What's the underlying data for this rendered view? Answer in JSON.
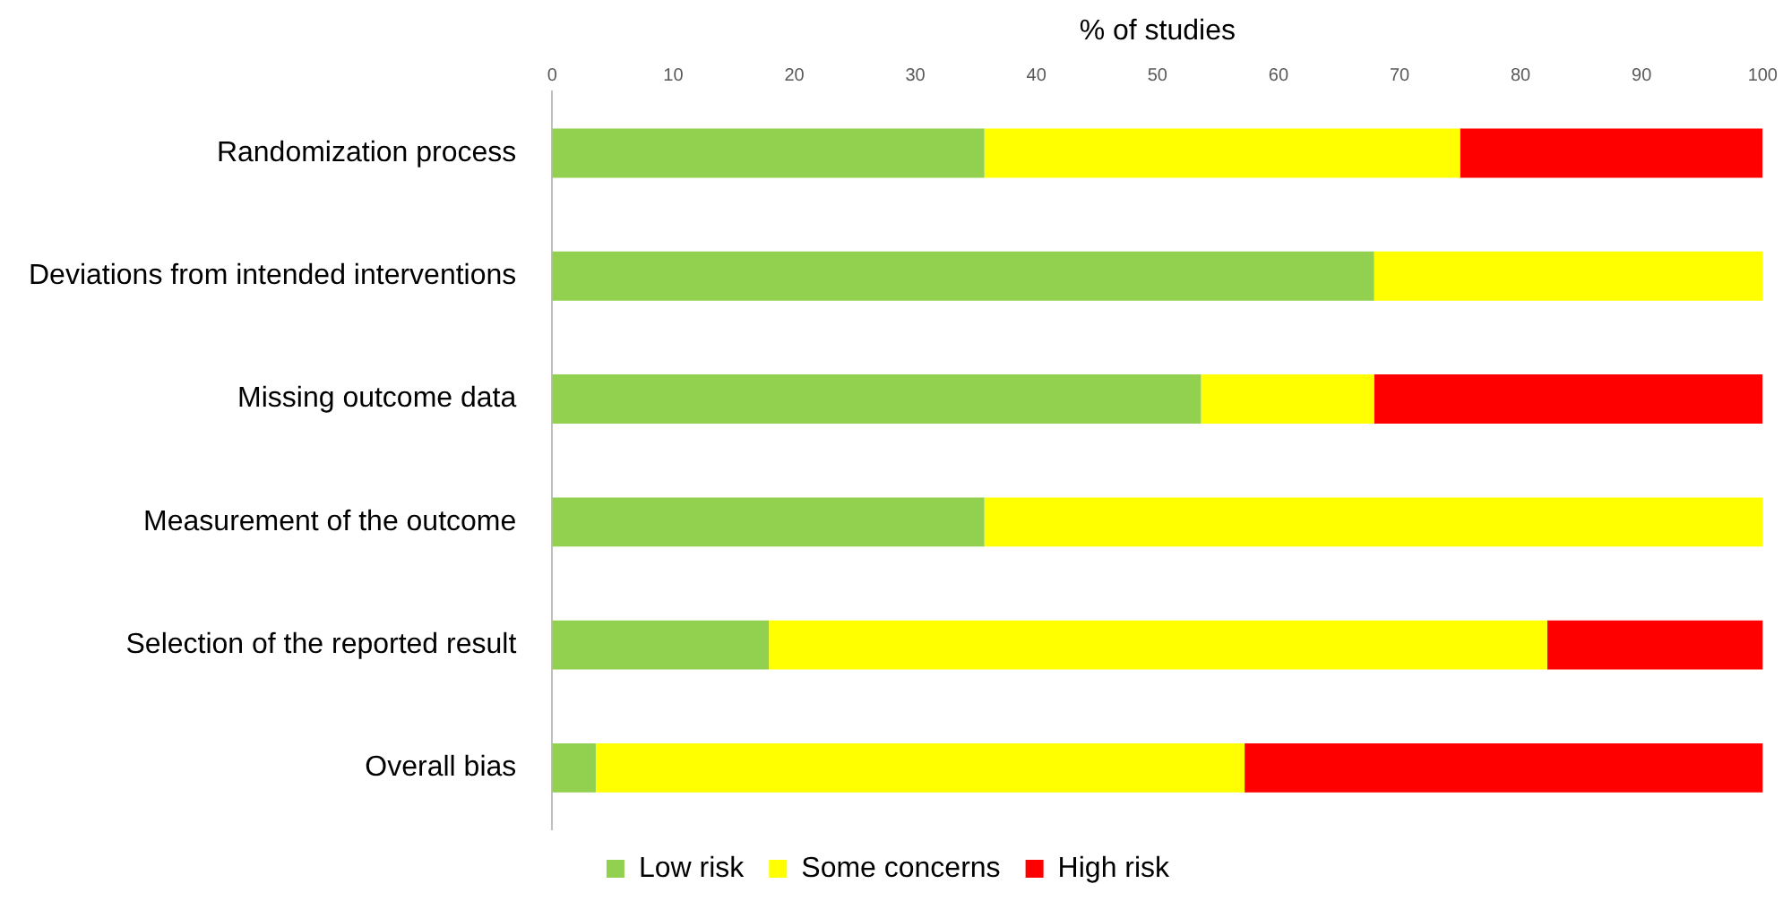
{
  "chart_data": {
    "type": "bar",
    "orientation": "horizontal",
    "stacked": true,
    "xlabel": "% of studies",
    "categories": [
      "Randomization process",
      "Deviations from intended interventions",
      "Missing outcome data",
      "Measurement of the outcome",
      "Selection of the reported result",
      "Overall bias"
    ],
    "series": [
      {
        "name": "Low risk",
        "color": "#92d050",
        "values": [
          35.7,
          67.9,
          53.6,
          35.7,
          17.9,
          3.6
        ]
      },
      {
        "name": "Some concerns",
        "color": "#ffff00",
        "values": [
          39.3,
          32.1,
          14.3,
          64.3,
          64.3,
          53.6
        ]
      },
      {
        "name": "High risk",
        "color": "#ff0000",
        "values": [
          25,
          0,
          32.1,
          0,
          17.9,
          42.9
        ]
      }
    ],
    "xlim": [
      0,
      100
    ],
    "xticks": [
      0,
      10,
      20,
      30,
      40,
      50,
      60,
      70,
      80,
      90,
      100
    ],
    "grid": false,
    "legend": "bottom"
  }
}
